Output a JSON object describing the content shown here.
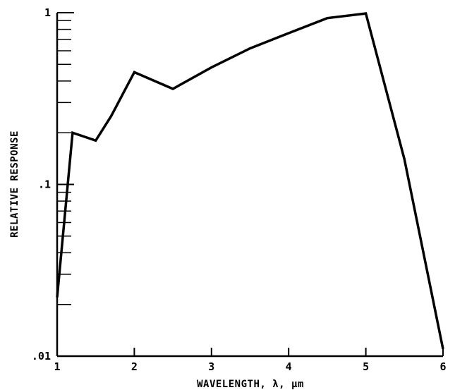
{
  "chart_data": {
    "type": "line",
    "title": "",
    "xlabel": "WAVELENGTH, λ, μm",
    "ylabel": "RELATIVE RESPONSE",
    "xlim": [
      1,
      6
    ],
    "ylim": [
      0.01,
      1
    ],
    "yscale": "log",
    "grid": false,
    "x_ticks": [
      {
        "value": 1,
        "label": "1"
      },
      {
        "value": 2,
        "label": "2"
      },
      {
        "value": 3,
        "label": "3"
      },
      {
        "value": 4,
        "label": "4"
      },
      {
        "value": 5,
        "label": "5"
      },
      {
        "value": 6,
        "label": "6"
      }
    ],
    "y_ticks": [
      {
        "value": 0.01,
        "label": ".01"
      },
      {
        "value": 0.1,
        "label": ".1"
      },
      {
        "value": 1,
        "label": "1"
      }
    ],
    "y_minor_ticks": [
      0.02,
      0.03,
      0.04,
      0.05,
      0.06,
      0.07,
      0.08,
      0.09,
      0.2,
      0.3,
      0.4,
      0.5,
      0.6,
      0.7,
      0.8,
      0.9
    ],
    "series": [
      {
        "color": "#000000",
        "x": [
          1.0,
          1.2,
          1.5,
          1.7,
          2.0,
          2.5,
          3.0,
          3.5,
          4.0,
          4.5,
          5.0,
          5.5,
          6.0
        ],
        "y": [
          0.022,
          0.2,
          0.18,
          0.25,
          0.45,
          0.36,
          0.48,
          0.62,
          0.76,
          0.93,
          0.99,
          0.14,
          0.011
        ]
      }
    ]
  }
}
